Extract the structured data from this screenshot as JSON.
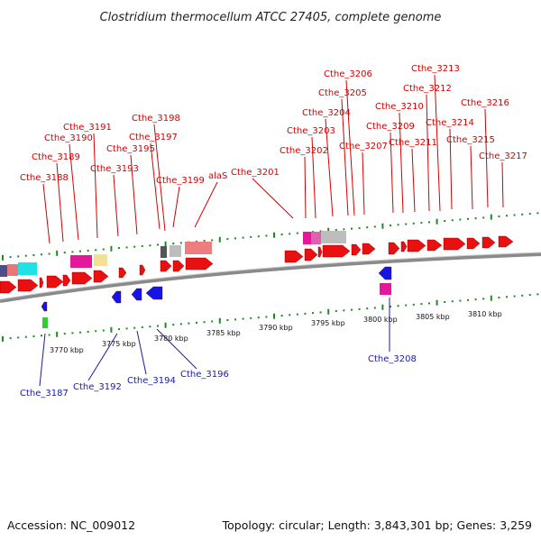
{
  "title": "Clostridium thermocellum ATCC 27405, complete genome",
  "footer": {
    "accession": "Accession: NC_009012",
    "summary": "Topology: circular; Length: 3,843,301 bp; Genes: 3,259"
  },
  "colors": {
    "forward_gene": "#e81010",
    "reverse_gene": "#1414e6",
    "leader_forward": "#d40000",
    "leader_reverse": "#1a1aa6",
    "backbone": "#808080",
    "tick": "#1f8a1f"
  },
  "position_ticks": [
    "3770 kbp",
    "3775 kbp",
    "3780 kbp",
    "3785 kbp",
    "3790 kbp",
    "3795 kbp",
    "3800 kbp",
    "3805 kbp",
    "3810 kbp"
  ],
  "forward_labels": [
    "Cthe_3188",
    "Cthe_3189",
    "Cthe_3190",
    "Cthe_3191",
    "Cthe_3193",
    "Cthe_3195",
    "Cthe_3197",
    "Cthe_3198",
    "Cthe_3199",
    "alaS",
    "Cthe_3201",
    "Cthe_3202",
    "Cthe_3203",
    "Cthe_3204",
    "Cthe_3205",
    "Cthe_3206",
    "Cthe_3207",
    "Cthe_3209",
    "Cthe_3210",
    "Cthe_3211",
    "Cthe_3212",
    "Cthe_3213",
    "Cthe_3214",
    "Cthe_3215",
    "Cthe_3216",
    "Cthe_3217"
  ],
  "reverse_labels": [
    "Cthe_3187",
    "Cthe_3192",
    "Cthe_3194",
    "Cthe_3196",
    "Cthe_3208"
  ]
}
